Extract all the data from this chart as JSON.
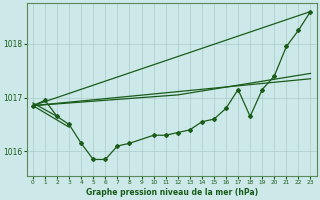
{
  "title": "Graphe pression niveau de la mer (hPa)",
  "background_color": "#cce8e8",
  "grid_color": "#aacccc",
  "line_color": "#1a5c1a",
  "border_color": "#5a8a5a",
  "xlim": [
    -0.5,
    23.5
  ],
  "ylim": [
    1015.55,
    1018.75
  ],
  "yticks": [
    1016,
    1017,
    1018
  ],
  "xtick_labels": [
    "0",
    "1",
    "2",
    "3",
    "4",
    "5",
    "6",
    "7",
    "8",
    "9",
    "10",
    "11",
    "12",
    "13",
    "14",
    "15",
    "16",
    "17",
    "18",
    "19",
    "20",
    "21",
    "22",
    "23"
  ],
  "main_series_x": [
    0,
    1,
    2,
    3,
    4,
    5,
    6,
    7,
    8,
    10,
    11,
    12,
    13,
    14,
    15,
    16,
    17,
    18,
    19,
    20,
    21,
    22,
    23
  ],
  "main_series_y": [
    1016.85,
    1016.95,
    1016.65,
    1016.5,
    1016.15,
    1015.85,
    1015.85,
    1016.1,
    1016.15,
    1016.3,
    1016.3,
    1016.35,
    1016.4,
    1016.55,
    1016.6,
    1016.8,
    1017.15,
    1016.65,
    1017.15,
    1017.4,
    1017.95,
    1018.25,
    1018.6
  ],
  "smooth_line1": {
    "x": [
      0,
      23
    ],
    "y": [
      1016.85,
      1018.6
    ]
  },
  "smooth_line2": {
    "x": [
      0,
      12,
      23
    ],
    "y": [
      1016.85,
      1017.05,
      1017.45
    ]
  },
  "smooth_line3": {
    "x": [
      0,
      23
    ],
    "y": [
      1016.85,
      1017.35
    ]
  },
  "short_line1": {
    "x": [
      0,
      3
    ],
    "y": [
      1016.85,
      1016.45
    ]
  },
  "short_line2": {
    "x": [
      0,
      2
    ],
    "y": [
      1016.9,
      1016.65
    ]
  }
}
